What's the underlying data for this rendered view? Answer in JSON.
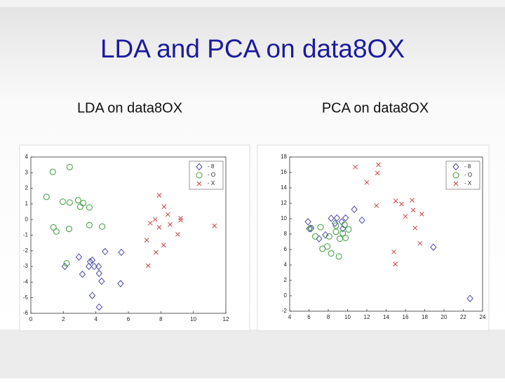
{
  "title": "LDA and PCA on data8OX",
  "chart_data": [
    {
      "type": "scatter",
      "title": "LDA on data8OX",
      "xlim": [
        0,
        12
      ],
      "xticks": [
        0,
        2,
        4,
        6,
        8,
        10,
        12
      ],
      "ylim": [
        -6,
        4
      ],
      "yticks": [
        -6,
        -5,
        -4,
        -3,
        -2,
        -1,
        0,
        1,
        2,
        3,
        4
      ],
      "legend": "upper right",
      "series": [
        {
          "name": "- 8",
          "color": "#4a4aa8",
          "marker": "diamond",
          "x": [
            2.09,
            2.96,
            3.17,
            3.57,
            3.65,
            3.78,
            3.9,
            4.17,
            4.2,
            4.35,
            4.57,
            3.78,
            4.2,
            5.52,
            5.57
          ],
          "values": [
            -3.0,
            -2.4,
            -3.5,
            -3.0,
            -2.7,
            -2.6,
            -3.0,
            -3.0,
            -3.45,
            -3.95,
            -2.05,
            -4.86,
            -5.6,
            -4.1,
            -2.1
          ]
        },
        {
          "name": "- O",
          "color": "#3a9a3a",
          "marker": "circle",
          "x": [
            1.35,
            2.39,
            0.96,
            1.96,
            2.39,
            2.91,
            3.04,
            3.22,
            3.6,
            1.39,
            1.57,
            2.35,
            3.6,
            4.39,
            2.2
          ],
          "values": [
            3.05,
            3.36,
            1.45,
            1.14,
            1.09,
            1.23,
            0.82,
            1.05,
            0.77,
            -0.5,
            -0.77,
            -0.6,
            -0.36,
            -0.45,
            -2.8
          ]
        },
        {
          "name": "- X",
          "color": "#cc4444",
          "marker": "x",
          "x": [
            7.9,
            8.2,
            8.43,
            7.65,
            7.35,
            7.9,
            8.57,
            9.22,
            9.22,
            9.04,
            8.17,
            7.7,
            7.13,
            7.22,
            11.3
          ],
          "values": [
            1.55,
            0.82,
            0.32,
            0,
            -0.23,
            -0.5,
            -0.32,
            0.09,
            -0.05,
            -0.95,
            -1.64,
            -2.1,
            -1.32,
            -2.95,
            -0.4
          ]
        }
      ]
    },
    {
      "type": "scatter",
      "title": "PCA on data8OX",
      "xlim": [
        4,
        24
      ],
      "xticks": [
        4,
        6,
        8,
        10,
        12,
        14,
        16,
        18,
        20,
        22,
        24
      ],
      "ylim": [
        -2,
        18
      ],
      "yticks": [
        -2,
        0,
        2,
        4,
        6,
        8,
        10,
        12,
        14,
        16,
        18
      ],
      "legend": "upper right",
      "series": [
        {
          "name": "- 8",
          "color": "#4a4aa8",
          "marker": "diamond",
          "x": [
            5.9,
            6.04,
            6.2,
            7.05,
            7.7,
            8.3,
            8.7,
            8.9,
            9.4,
            9.5,
            9.8,
            10.7,
            11.5,
            18.9,
            22.7
          ],
          "values": [
            9.6,
            8.7,
            8.7,
            7.4,
            7.9,
            10.05,
            9.4,
            10.1,
            9.6,
            8.7,
            10.1,
            11.2,
            9.8,
            6.3,
            -0.35
          ]
        },
        {
          "name": "- O",
          "color": "#3a9a3a",
          "marker": "circle",
          "x": [
            6.2,
            6.65,
            7.2,
            7.4,
            7.9,
            8.1,
            8.3,
            8.8,
            9.1,
            9.2,
            9.5,
            9.8,
            10.1,
            9.7,
            8.8
          ],
          "values": [
            8.8,
            7.7,
            8.9,
            6.1,
            6.4,
            7.7,
            5.5,
            8.3,
            5.1,
            7.4,
            8.1,
            7.5,
            8.6,
            9.2,
            9.1
          ]
        },
        {
          "name": "- X",
          "color": "#cc4444",
          "marker": "x",
          "x": [
            10.8,
            13.2,
            13.1,
            12.0,
            13.0,
            15.0,
            15.6,
            16.7,
            16.8,
            16.0,
            17.7,
            17.0,
            17.5,
            14.8,
            14.95
          ],
          "values": [
            16.7,
            17.0,
            15.9,
            14.7,
            11.7,
            12.3,
            11.9,
            12.4,
            11.1,
            10.3,
            10.6,
            8.8,
            6.8,
            5.7,
            4.1
          ]
        }
      ]
    }
  ]
}
